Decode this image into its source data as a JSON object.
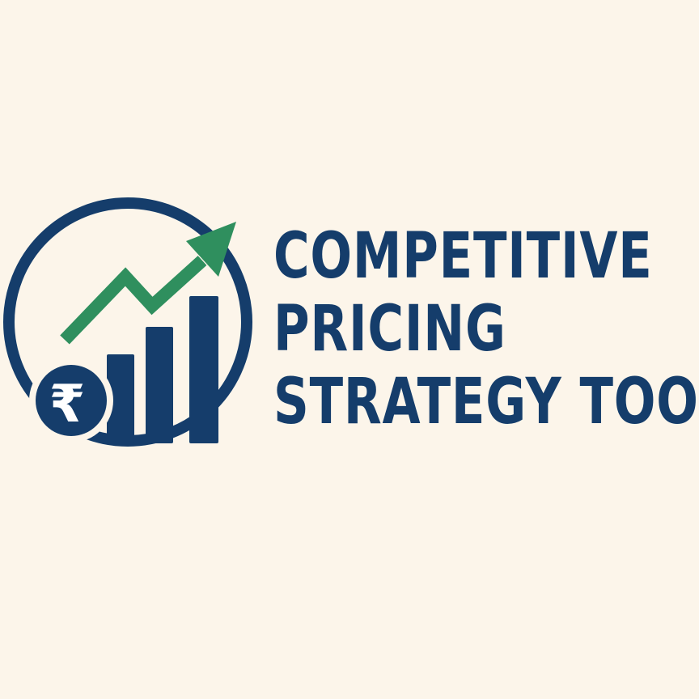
{
  "colors": {
    "background": "#fcf5ea",
    "navy": "#153d6b",
    "green": "#2f8f5e",
    "white": "#ffffff"
  },
  "logo": {
    "currency_symbol": "₹",
    "icon_name": "growth-chart-rupee-icon"
  },
  "title": {
    "line1": "COMPETITIVE",
    "line2": "PRICING",
    "line3": "STRATEGY TOOL"
  }
}
